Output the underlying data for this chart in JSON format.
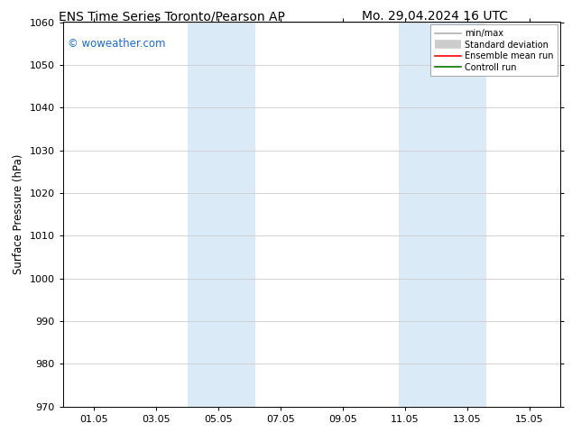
{
  "title_left": "ENS Time Series Toronto/Pearson AP",
  "title_right": "Mo. 29.04.2024 16 UTC",
  "ylabel": "Surface Pressure (hPa)",
  "ylim": [
    970,
    1060
  ],
  "yticks": [
    970,
    980,
    990,
    1000,
    1010,
    1020,
    1030,
    1040,
    1050,
    1060
  ],
  "xlim": [
    0.0,
    16.0
  ],
  "xtick_labels": [
    "01.05",
    "03.05",
    "05.05",
    "07.05",
    "09.05",
    "11.05",
    "13.05",
    "15.05"
  ],
  "xtick_positions": [
    1,
    3,
    5,
    7,
    9,
    11,
    13,
    15
  ],
  "shaded_bands": [
    {
      "xmin": 4.0,
      "xmax": 6.2,
      "color": "#daeaf7"
    },
    {
      "xmin": 10.8,
      "xmax": 13.6,
      "color": "#daeaf7"
    }
  ],
  "watermark_text": "© woweather.com",
  "watermark_color": "#1a6bcc",
  "legend_items": [
    {
      "label": "min/max",
      "color": "#b0b0b0",
      "linewidth": 1.2,
      "linestyle": "-"
    },
    {
      "label": "Standard deviation",
      "color": "#cccccc",
      "linewidth": 7,
      "linestyle": "-"
    },
    {
      "label": "Ensemble mean run",
      "color": "#ff0000",
      "linewidth": 1.2,
      "linestyle": "-"
    },
    {
      "label": "Controll run",
      "color": "#007700",
      "linewidth": 1.2,
      "linestyle": "-"
    }
  ],
  "background_color": "#ffffff",
  "grid_color": "#cccccc",
  "title_fontsize": 10,
  "tick_fontsize": 8,
  "ylabel_fontsize": 8.5,
  "watermark_fontsize": 8.5,
  "legend_fontsize": 7
}
